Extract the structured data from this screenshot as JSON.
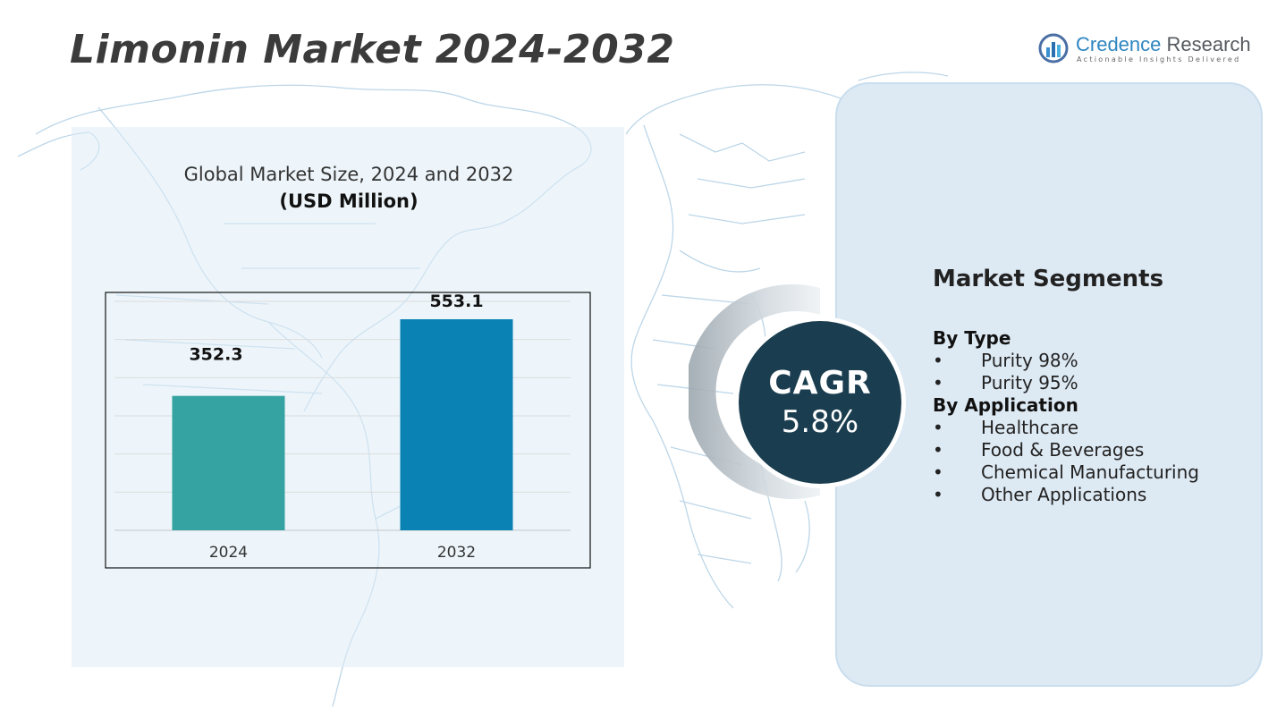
{
  "header": {
    "title": "Limonin Market 2024-2032",
    "logo": {
      "name_part1": "Credence",
      "name_part2": " Research",
      "tagline": "Actionable Insights Delivered",
      "icon": "bar-chart-circle-logo"
    }
  },
  "chart": {
    "title": "Global Market Size, 2024 and 2032",
    "unit": "(USD Million)"
  },
  "chart_data": {
    "type": "bar",
    "categories": [
      "2024",
      "2032"
    ],
    "values": [
      352.3,
      553.1
    ],
    "data_labels": [
      "352.3",
      "553.1"
    ],
    "ylim": [
      0,
      600
    ],
    "grid": true,
    "colors": [
      "#35a3a1",
      "#0a82b4"
    ]
  },
  "cagr": {
    "label": "CAGR",
    "value": "5.8%",
    "color": "#1a3d4f"
  },
  "segments": {
    "heading": "Market Segments",
    "groups": [
      {
        "title": "By Type",
        "items": [
          "Purity 98%",
          "Purity 95%"
        ]
      },
      {
        "title": "By Application",
        "items": [
          "Healthcare",
          "Food & Beverages",
          "Chemical Manufacturing",
          "Other Applications"
        ]
      }
    ]
  },
  "colors": {
    "title": "#3b3b3b",
    "panel_left": "#e6f0f8",
    "panel_right": "#dde9f3",
    "map_lines": "#b9d4e6"
  }
}
